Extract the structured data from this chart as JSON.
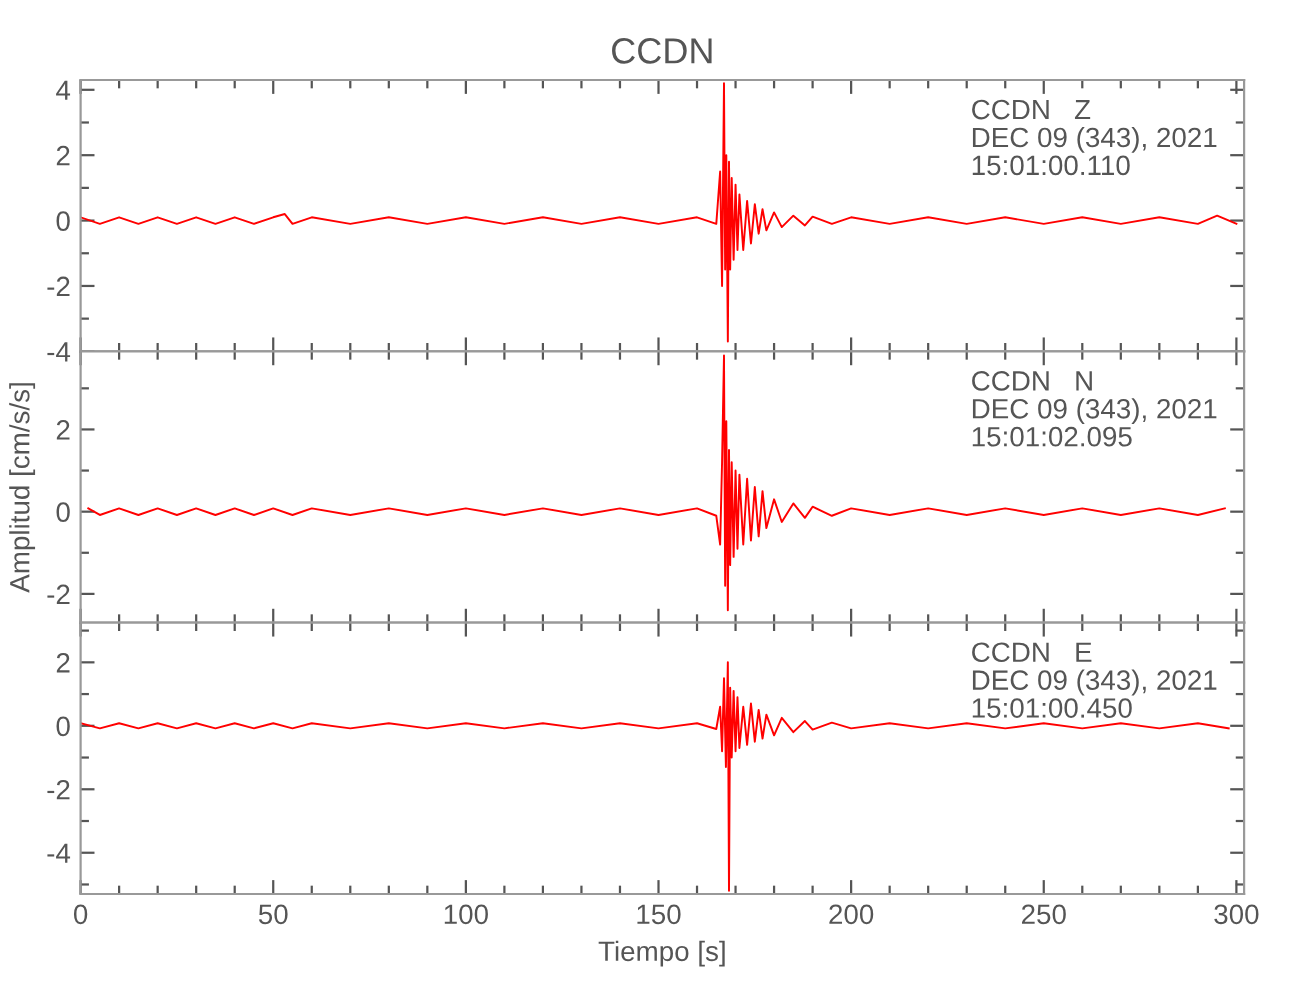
{
  "chart_data": [
    {
      "type": "line",
      "title": "CCDN",
      "tick_labels": "y",
      "grid": false,
      "line_style": "solid",
      "marker": "none",
      "annotations": [
        "CCDN   Z\nDEC 09 (343), 2021\n15:01:00.110"
      ],
      "xlim": [
        0,
        302
      ],
      "xticks": [
        0,
        {
          "value": 10,
          "label": null
        },
        {
          "value": 20,
          "label": null
        },
        {
          "value": 30,
          "label": null
        },
        {
          "value": 40,
          "label": null
        },
        50,
        {
          "value": 60,
          "label": null
        },
        {
          "value": 70,
          "label": null
        },
        {
          "value": 80,
          "label": null
        },
        {
          "value": 90,
          "label": null
        },
        100,
        {
          "value": 110,
          "label": null
        },
        {
          "value": 120,
          "label": null
        },
        {
          "value": 130,
          "label": null
        },
        {
          "value": 140,
          "label": null
        },
        150,
        {
          "value": 160,
          "label": null
        },
        {
          "value": 170,
          "label": null
        },
        {
          "value": 180,
          "label": null
        },
        {
          "value": 190,
          "label": null
        },
        200,
        {
          "value": 210,
          "label": null
        },
        {
          "value": 220,
          "label": null
        },
        {
          "value": 230,
          "label": null
        },
        {
          "value": 240,
          "label": null
        },
        250,
        {
          "value": 260,
          "label": null
        },
        {
          "value": 270,
          "label": null
        },
        {
          "value": 280,
          "label": null
        },
        {
          "value": 290,
          "label": null
        },
        300
      ],
      "ylim": [
        -4,
        4.3
      ],
      "yticks": [
        -4,
        {
          "value": -3,
          "label": null
        },
        -2,
        {
          "value": -1,
          "label": null
        },
        0,
        {
          "value": 1,
          "label": null
        },
        2,
        {
          "value": 3,
          "label": null
        },
        4
      ],
      "series": [
        {
          "color": "#ff0000",
          "x": [
            0,
            5,
            10,
            15,
            20,
            25,
            30,
            35,
            40,
            45,
            50,
            53,
            55,
            60,
            70,
            80,
            90,
            100,
            110,
            120,
            130,
            140,
            150,
            160,
            165,
            166,
            166.5,
            167,
            167.3,
            167.6,
            168,
            168.3,
            168.6,
            169,
            169.5,
            170,
            170.5,
            171,
            172,
            173,
            174,
            175,
            176,
            177,
            178,
            180,
            182,
            185,
            188,
            190,
            195,
            200,
            210,
            220,
            230,
            240,
            250,
            260,
            270,
            280,
            290,
            295,
            300
          ],
          "values": [
            0.1,
            -0.1,
            0.1,
            -0.1,
            0.1,
            -0.1,
            0.1,
            -0.1,
            0.1,
            -0.1,
            0.1,
            0.2,
            -0.1,
            0.1,
            -0.1,
            0.1,
            -0.1,
            0.1,
            -0.1,
            0.1,
            -0.1,
            0.1,
            -0.1,
            0.1,
            -0.1,
            1.5,
            -2.0,
            4.2,
            -1.5,
            2.0,
            -3.7,
            1.8,
            -1.5,
            1.3,
            -1.2,
            1.1,
            -0.9,
            0.8,
            -0.9,
            0.6,
            -0.7,
            0.5,
            -0.4,
            0.35,
            -0.3,
            0.25,
            -0.2,
            0.15,
            -0.15,
            0.12,
            -0.1,
            0.1,
            -0.1,
            0.1,
            -0.1,
            0.1,
            -0.1,
            0.1,
            -0.1,
            0.1,
            -0.1,
            0.15,
            -0.1
          ]
        }
      ]
    },
    {
      "type": "line",
      "ylabel": "Amplitud [cm/s/s]",
      "tick_labels": "y",
      "grid": false,
      "line_style": "solid",
      "marker": "none",
      "annotations": [
        "CCDN   N\nDEC 09 (343), 2021\n15:01:02.095"
      ],
      "xlim": [
        0,
        302
      ],
      "xticks": [
        0,
        {
          "value": 10,
          "label": null
        },
        {
          "value": 20,
          "label": null
        },
        {
          "value": 30,
          "label": null
        },
        {
          "value": 40,
          "label": null
        },
        50,
        {
          "value": 60,
          "label": null
        },
        {
          "value": 70,
          "label": null
        },
        {
          "value": 80,
          "label": null
        },
        {
          "value": 90,
          "label": null
        },
        100,
        {
          "value": 110,
          "label": null
        },
        {
          "value": 120,
          "label": null
        },
        {
          "value": 130,
          "label": null
        },
        {
          "value": 140,
          "label": null
        },
        150,
        {
          "value": 160,
          "label": null
        },
        {
          "value": 170,
          "label": null
        },
        {
          "value": 180,
          "label": null
        },
        {
          "value": 190,
          "label": null
        },
        200,
        {
          "value": 210,
          "label": null
        },
        {
          "value": 220,
          "label": null
        },
        {
          "value": 230,
          "label": null
        },
        {
          "value": 240,
          "label": null
        },
        250,
        {
          "value": 260,
          "label": null
        },
        {
          "value": 270,
          "label": null
        },
        {
          "value": 280,
          "label": null
        },
        {
          "value": 290,
          "label": null
        },
        300
      ],
      "ylim": [
        -2.7,
        3.9
      ],
      "yticks": [
        -2,
        {
          "value": -1,
          "label": null
        },
        0,
        {
          "value": 1,
          "label": null
        },
        2,
        {
          "value": 3,
          "label": null
        }
      ],
      "series": [
        {
          "color": "#ff0000",
          "x": [
            2,
            5,
            10,
            15,
            20,
            25,
            30,
            35,
            40,
            45,
            50,
            55,
            60,
            70,
            80,
            90,
            100,
            110,
            120,
            130,
            140,
            150,
            160,
            165,
            166,
            166.5,
            167,
            167.3,
            167.6,
            168,
            168.3,
            168.6,
            169,
            169.5,
            170,
            170.5,
            171,
            172,
            173,
            174,
            175,
            176,
            177,
            178,
            180,
            182,
            185,
            188,
            190,
            195,
            200,
            210,
            220,
            230,
            240,
            250,
            260,
            270,
            280,
            290,
            297
          ],
          "values": [
            0.08,
            -0.08,
            0.08,
            -0.08,
            0.08,
            -0.08,
            0.08,
            -0.08,
            0.08,
            -0.08,
            0.08,
            -0.08,
            0.08,
            -0.08,
            0.08,
            -0.08,
            0.08,
            -0.08,
            0.08,
            -0.08,
            0.08,
            -0.08,
            0.08,
            -0.1,
            -0.8,
            1.2,
            3.8,
            -1.8,
            2.2,
            -2.4,
            1.5,
            -1.3,
            1.2,
            -1.1,
            1.0,
            -0.9,
            0.9,
            -0.8,
            0.8,
            -0.7,
            0.6,
            -0.6,
            0.5,
            -0.4,
            0.3,
            -0.25,
            0.2,
            -0.15,
            0.12,
            -0.1,
            0.08,
            -0.08,
            0.08,
            -0.08,
            0.08,
            -0.08,
            0.08,
            -0.08,
            0.08,
            -0.08,
            0.08
          ]
        }
      ]
    },
    {
      "type": "line",
      "xlabel": "Tiempo [s]",
      "grid": false,
      "line_style": "solid",
      "marker": "none",
      "annotations": [
        "CCDN   E\nDEC 09 (343), 2021\n15:01:00.450"
      ],
      "xlim": [
        0,
        302
      ],
      "xticks": [
        0,
        {
          "value": 10,
          "label": null
        },
        {
          "value": 20,
          "label": null
        },
        {
          "value": 30,
          "label": null
        },
        {
          "value": 40,
          "label": null
        },
        50,
        {
          "value": 60,
          "label": null
        },
        {
          "value": 70,
          "label": null
        },
        {
          "value": 80,
          "label": null
        },
        {
          "value": 90,
          "label": null
        },
        100,
        {
          "value": 110,
          "label": null
        },
        {
          "value": 120,
          "label": null
        },
        {
          "value": 130,
          "label": null
        },
        {
          "value": 140,
          "label": null
        },
        150,
        {
          "value": 160,
          "label": null
        },
        {
          "value": 170,
          "label": null
        },
        {
          "value": 180,
          "label": null
        },
        {
          "value": 190,
          "label": null
        },
        200,
        {
          "value": 210,
          "label": null
        },
        {
          "value": 220,
          "label": null
        },
        {
          "value": 230,
          "label": null
        },
        {
          "value": 240,
          "label": null
        },
        250,
        {
          "value": 260,
          "label": null
        },
        {
          "value": 270,
          "label": null
        },
        {
          "value": 280,
          "label": null
        },
        {
          "value": 290,
          "label": null
        },
        300
      ],
      "ylim": [
        -5.3,
        3.25
      ],
      "yticks": [
        {
          "value": -5,
          "label": null
        },
        -4,
        {
          "value": -3,
          "label": null
        },
        -2,
        {
          "value": -1,
          "label": null
        },
        0,
        {
          "value": 1,
          "label": null
        },
        2,
        {
          "value": 3,
          "label": null
        }
      ],
      "series": [
        {
          "color": "#ff0000",
          "x": [
            0,
            5,
            10,
            15,
            20,
            25,
            30,
            35,
            40,
            45,
            50,
            55,
            60,
            70,
            80,
            90,
            100,
            110,
            120,
            130,
            140,
            150,
            160,
            165,
            166,
            166.5,
            167,
            167.5,
            168,
            168.3,
            168.6,
            169,
            169.5,
            170,
            170.5,
            171,
            172,
            173,
            174,
            175,
            176,
            177,
            178,
            180,
            182,
            185,
            188,
            190,
            195,
            200,
            210,
            220,
            230,
            240,
            250,
            260,
            270,
            280,
            290,
            298
          ],
          "values": [
            0.08,
            -0.08,
            0.08,
            -0.08,
            0.08,
            -0.08,
            0.08,
            -0.08,
            0.08,
            -0.08,
            0.08,
            -0.08,
            0.08,
            -0.08,
            0.08,
            -0.08,
            0.08,
            -0.08,
            0.08,
            -0.08,
            0.08,
            -0.08,
            0.08,
            -0.1,
            0.6,
            -0.8,
            1.5,
            -1.3,
            2.0,
            -5.2,
            1.2,
            -1.0,
            1.1,
            -0.8,
            0.9,
            -0.7,
            0.6,
            -0.6,
            0.7,
            -0.5,
            0.5,
            -0.4,
            0.35,
            -0.3,
            0.25,
            -0.2,
            0.15,
            -0.12,
            0.1,
            -0.08,
            0.08,
            -0.08,
            0.08,
            -0.08,
            0.08,
            -0.08,
            0.08,
            -0.08,
            0.08,
            -0.08
          ]
        }
      ]
    }
  ]
}
